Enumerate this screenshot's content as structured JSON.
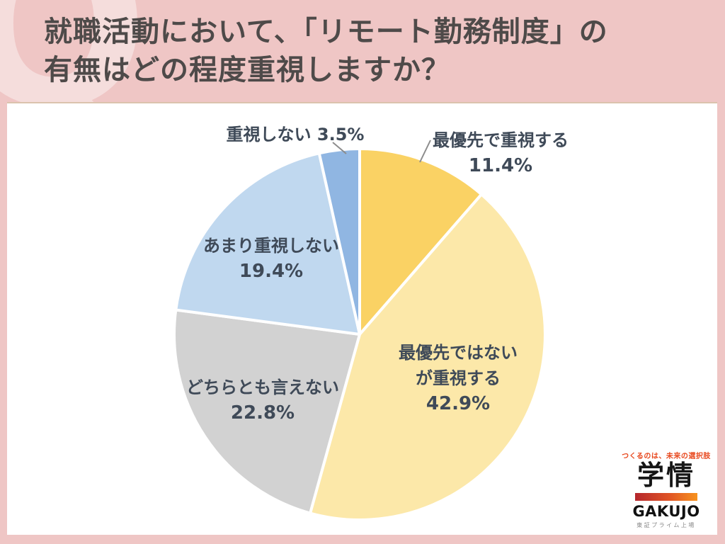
{
  "page": {
    "watermark_letter": "Q",
    "title_line1": "就職活動において、「リモート勤務制度」の",
    "title_line2": "有無はどの程度重視しますか？"
  },
  "chart_data": {
    "type": "pie",
    "title": "就職活動において、「リモート勤務制度」の有無はどの程度重視しますか？",
    "unit": "%",
    "start_angle_deg": 0,
    "direction": "clockwise",
    "legend_position": "none",
    "series": [
      {
        "label": "最優先で重視する",
        "value": 11.4,
        "color": "#fad264"
      },
      {
        "label": "最優先ではないが重視する",
        "value": 42.9,
        "color": "#fce8a9"
      },
      {
        "label": "どちらとも言えない",
        "value": 22.8,
        "color": "#d2d2d2"
      },
      {
        "label": "あまり重視しない",
        "value": 19.4,
        "color": "#c0d8ef"
      },
      {
        "label": "重視しない",
        "value": 3.5,
        "color": "#90b6e2"
      }
    ]
  },
  "pie_labels": {
    "top_priority": {
      "name": "最優先で重視する",
      "pct": "11.4%"
    },
    "important_not_top": {
      "line1": "最優先ではない",
      "line2": "が重視する",
      "pct": "42.9%"
    },
    "neutral": {
      "name": "どちらとも言えない",
      "pct": "22.8%"
    },
    "less_important": {
      "name": "あまり重視しない",
      "pct": "19.4%"
    },
    "not_important": {
      "name": "重視しない 3.5%"
    }
  },
  "logo": {
    "tagline": "つくるのは、未来の選択肢",
    "brand_jp": "学情",
    "brand_en": "GAKUJO",
    "note": "東証プライム上場"
  }
}
